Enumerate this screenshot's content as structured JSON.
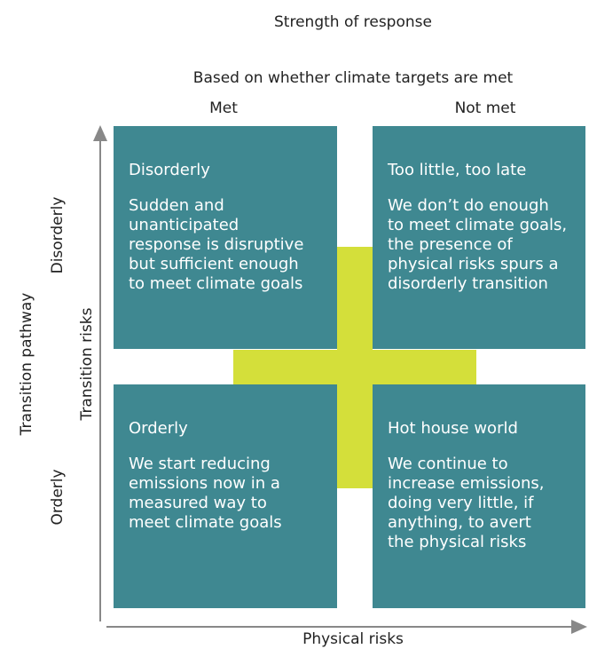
{
  "header": {
    "title": "Strength of response",
    "subtitle": "Based on whether climate targets are met"
  },
  "columns": [
    "Met",
    "Not met"
  ],
  "axes": {
    "x_label": "Physical risks",
    "y_label": "Transition risks",
    "outer_label": "Transition pathway",
    "rows": [
      "Disorderly",
      "Orderly"
    ]
  },
  "quadrants": [
    {
      "title": "Disorderly",
      "body": [
        "Sudden and",
        "unanticipated",
        "response is disruptive",
        "but sufficient enough",
        "to meet climate goals"
      ]
    },
    {
      "title": "Too little, too late",
      "body": [
        "We don’t do enough",
        "to meet climate goals,",
        "the presence of",
        "physical risks spurs a",
        "disorderly transition"
      ]
    },
    {
      "title": "Orderly",
      "body": [
        "We start reducing",
        "emissions now in a",
        "measured way to",
        "meet climate goals"
      ]
    },
    {
      "title": "Hot house world",
      "body": [
        "We continue to",
        "increase emissions,",
        "doing very little, if",
        "anything, to avert",
        "the physical risks"
      ]
    }
  ]
}
